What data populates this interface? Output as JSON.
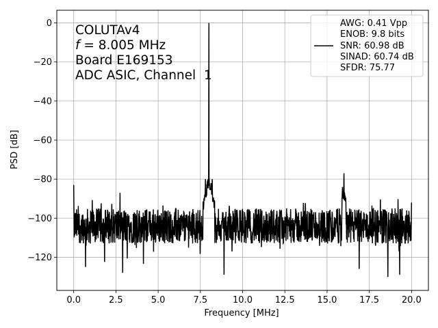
{
  "chart_data": {
    "type": "line",
    "xlabel": "Frequency [MHz]",
    "ylabel": "PSD [dB]",
    "xlim": [
      -1.0,
      21.0
    ],
    "ylim": [
      -137,
      6.5
    ],
    "xticks": [
      0.0,
      2.5,
      5.0,
      7.5,
      10.0,
      12.5,
      15.0,
      17.5,
      20.0
    ],
    "xtick_labels": [
      "0.0",
      "2.5",
      "5.0",
      "7.5",
      "10.0",
      "12.5",
      "15.0",
      "17.5",
      "20.0"
    ],
    "yticks": [
      0,
      -20,
      -40,
      -60,
      -80,
      -100,
      -120
    ],
    "ytick_labels": [
      "0",
      "−20",
      "−40",
      "−60",
      "−80",
      "−100",
      "−120"
    ],
    "grid": true,
    "line_color": "#000000",
    "annotation": {
      "line1": "COLUTAv4",
      "line2_italic": "f",
      "line2_rest": " = 8.005 MHz",
      "line3": "Board E169153",
      "line4": "ADC ASIC, Channel  1"
    },
    "legend": {
      "placement": "top-right",
      "lines": [
        "AWG: 0.41 Vpp",
        "ENOB: 9.8 bits",
        "SNR: 60.98 dB",
        "SINAD: 60.74 dB",
        "SFDR: 75.77"
      ]
    },
    "series": [
      {
        "noise_floor_db": -104,
        "fundamental": {
          "x": 8.005,
          "y": 0
        },
        "spurs": [
          {
            "x": 0.0,
            "y": -83
          },
          {
            "x": 7.8,
            "y": -80
          },
          {
            "x": 8.2,
            "y": -80
          },
          {
            "x": 16.0,
            "y": -77
          },
          {
            "x": 20.0,
            "y": -92
          }
        ],
        "minima": [
          {
            "x": 0.7,
            "y": -125
          },
          {
            "x": 2.9,
            "y": -128
          },
          {
            "x": 8.9,
            "y": -129
          },
          {
            "x": 16.9,
            "y": -126
          },
          {
            "x": 18.6,
            "y": -130
          },
          {
            "x": 19.3,
            "y": -129
          }
        ]
      }
    ]
  }
}
